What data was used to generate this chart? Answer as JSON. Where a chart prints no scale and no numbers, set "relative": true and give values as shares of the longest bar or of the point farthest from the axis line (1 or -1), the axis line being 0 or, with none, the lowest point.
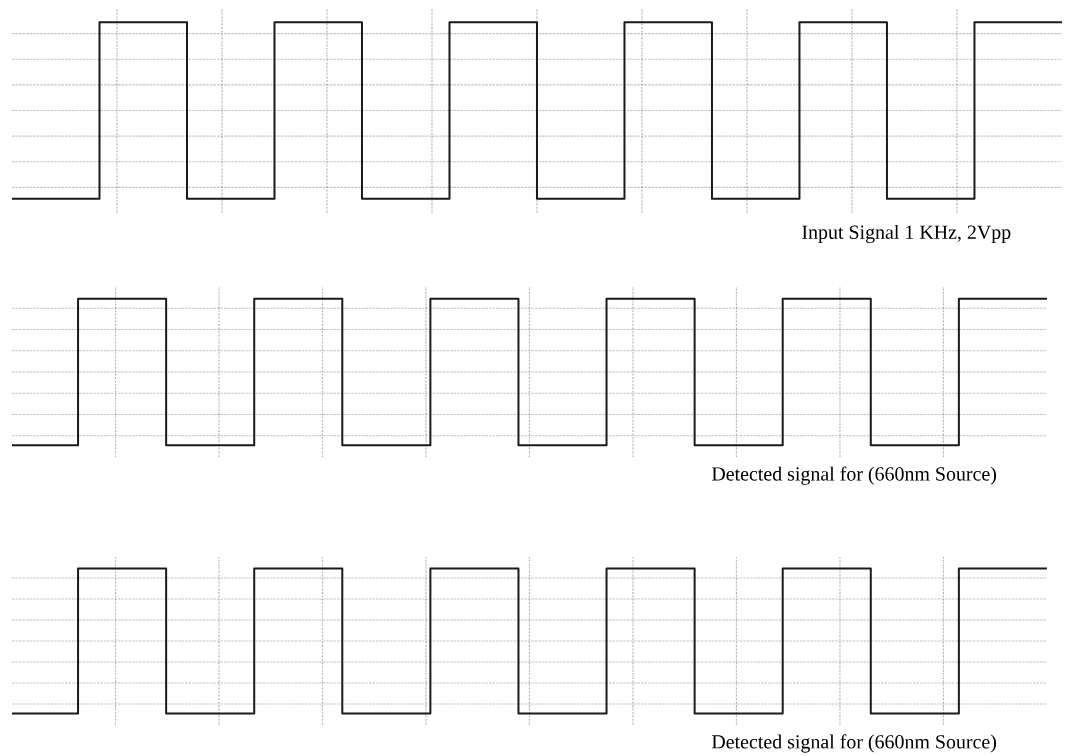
{
  "chart_data": [
    {
      "type": "step",
      "title": "Input Signal 1 KHz, 2Vpp",
      "relative": true,
      "grid": true,
      "color": "#1a1a1a",
      "categories": [
        null,
        null,
        null,
        null,
        null,
        null,
        null,
        null,
        null,
        null,
        null,
        null,
        null,
        null,
        null,
        null,
        null,
        null,
        null,
        null,
        null,
        null,
        null,
        null,
        null,
        null,
        null,
        null,
        null,
        null,
        null,
        null,
        null,
        null,
        null,
        null,
        null,
        null,
        null,
        null,
        null,
        null,
        null,
        null,
        null,
        null,
        null,
        null,
        null
      ],
      "values": [
        0,
        0,
        0,
        0,
        1,
        1,
        1,
        1,
        0,
        0,
        0,
        0,
        1,
        1,
        1,
        1,
        0,
        0,
        0,
        0,
        1,
        1,
        1,
        1,
        0,
        0,
        0,
        0,
        1,
        1,
        1,
        1,
        0,
        0,
        0,
        0,
        1,
        1,
        1,
        1,
        0,
        0,
        0,
        0,
        1,
        1,
        1,
        1,
        1
      ]
    },
    {
      "type": "step",
      "title": "Detected signal for (660nm Source)",
      "relative": true,
      "grid": true,
      "color": "#1a1a1a",
      "categories": [
        null,
        null,
        null,
        null,
        null,
        null,
        null,
        null,
        null,
        null,
        null,
        null,
        null,
        null,
        null,
        null,
        null,
        null,
        null,
        null,
        null,
        null,
        null,
        null,
        null,
        null,
        null,
        null,
        null,
        null,
        null,
        null,
        null,
        null,
        null,
        null,
        null,
        null,
        null,
        null,
        null,
        null,
        null,
        null,
        null,
        null,
        null,
        null
      ],
      "values": [
        0,
        0,
        0,
        1,
        1,
        1,
        1,
        0,
        0,
        0,
        0,
        1,
        1,
        1,
        1,
        0,
        0,
        0,
        0,
        1,
        1,
        1,
        1,
        0,
        0,
        0,
        0,
        1,
        1,
        1,
        1,
        0,
        0,
        0,
        0,
        1,
        1,
        1,
        1,
        0,
        0,
        0,
        0,
        1,
        1,
        1,
        1,
        1
      ]
    },
    {
      "type": "step",
      "title": "Detected signal for (660nm Source)",
      "relative": true,
      "grid": true,
      "color": "#1a1a1a",
      "categories": [
        null,
        null,
        null,
        null,
        null,
        null,
        null,
        null,
        null,
        null,
        null,
        null,
        null,
        null,
        null,
        null,
        null,
        null,
        null,
        null,
        null,
        null,
        null,
        null,
        null,
        null,
        null,
        null,
        null,
        null,
        null,
        null,
        null,
        null,
        null,
        null,
        null,
        null,
        null,
        null,
        null,
        null,
        null,
        null,
        null,
        null,
        null,
        null
      ],
      "values": [
        0,
        0,
        0,
        1,
        1,
        1,
        1,
        0,
        0,
        0,
        0,
        1,
        1,
        1,
        1,
        0,
        0,
        0,
        0,
        1,
        1,
        1,
        1,
        0,
        0,
        0,
        0,
        1,
        1,
        1,
        1,
        0,
        0,
        0,
        0,
        1,
        1,
        1,
        1,
        0,
        0,
        0,
        0,
        1,
        1,
        1,
        1,
        1
      ]
    }
  ]
}
